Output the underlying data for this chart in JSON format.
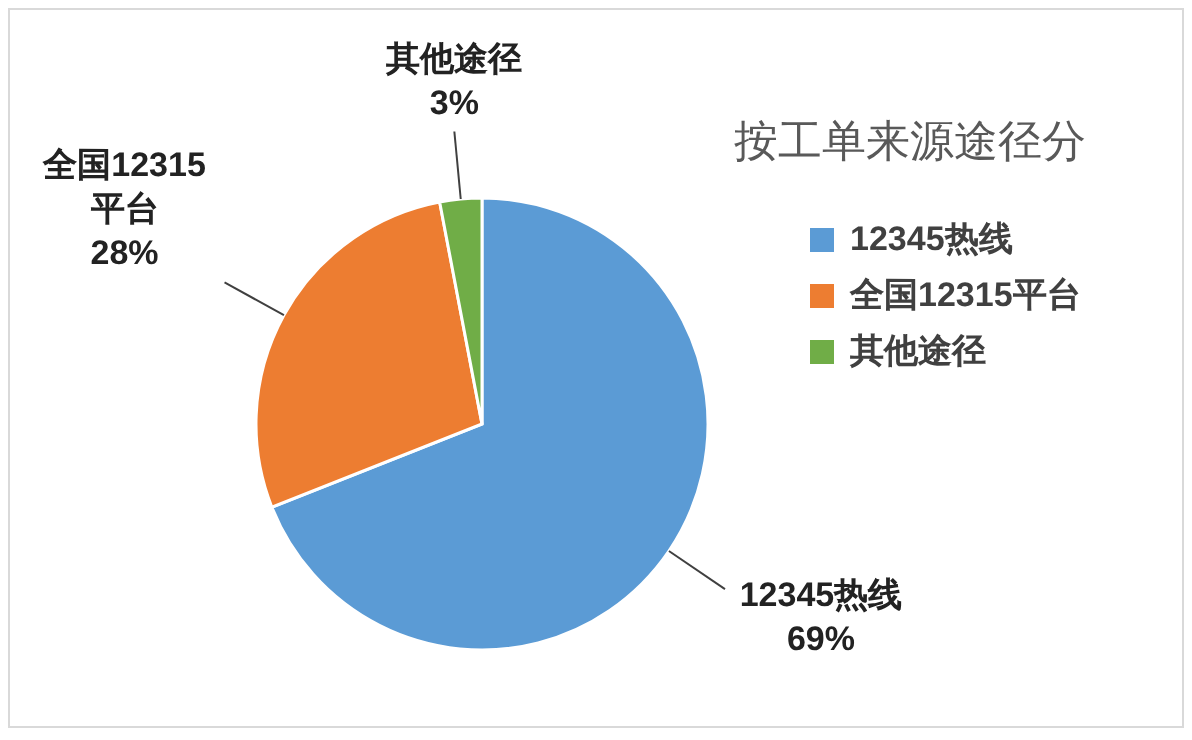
{
  "chart_data": {
    "type": "pie",
    "title": "按工单来源途径分",
    "categories": [
      "12345热线",
      "全国12315平台",
      "其他途径"
    ],
    "values": [
      69,
      28,
      3
    ],
    "colors": [
      "#5b9bd5",
      "#ed7d31",
      "#70ad47"
    ],
    "value_labels": [
      "69%",
      "28%",
      "3%"
    ],
    "legend": "right"
  }
}
